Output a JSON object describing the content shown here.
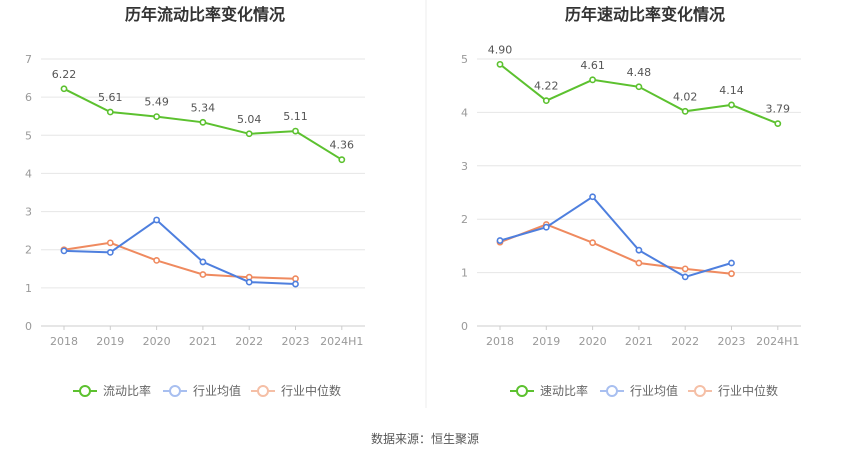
{
  "colors": {
    "current": "#5cc12f",
    "avg": "#4e7fde",
    "median": "#ef8a5f"
  },
  "legend": {
    "current_ratio": "流动比率",
    "quick_ratio": "速动比率",
    "industry_avg": "行业均值",
    "industry_median": "行业中位数"
  },
  "source": "数据来源：恒生聚源",
  "chart_data": [
    {
      "type": "line",
      "title": "历年流动比率变化情况",
      "categories": [
        "2018",
        "2019",
        "2020",
        "2021",
        "2022",
        "2023",
        "2024H1"
      ],
      "ylim": [
        0,
        7
      ],
      "yticks": [
        0,
        1,
        2,
        3,
        4,
        5,
        6,
        7
      ],
      "series": [
        {
          "name": "流动比率",
          "color_key": "current",
          "values": [
            6.22,
            5.61,
            5.49,
            5.34,
            5.04,
            5.11,
            4.36
          ],
          "labels": [
            "6.22",
            "5.61",
            "5.49",
            "5.34",
            "5.04",
            "5.11",
            "4.36"
          ]
        },
        {
          "name": "行业均值",
          "color_key": "avg",
          "values": [
            1.97,
            1.93,
            2.78,
            1.68,
            1.15,
            1.1,
            null
          ]
        },
        {
          "name": "行业中位数",
          "color_key": "median",
          "values": [
            2.0,
            2.18,
            1.72,
            1.35,
            1.28,
            1.24,
            null
          ]
        }
      ]
    },
    {
      "type": "line",
      "title": "历年速动比率变化情况",
      "categories": [
        "2018",
        "2019",
        "2020",
        "2021",
        "2022",
        "2023",
        "2024H1"
      ],
      "ylim": [
        0,
        5
      ],
      "yticks": [
        0,
        1,
        2,
        3,
        4,
        5
      ],
      "series": [
        {
          "name": "速动比率",
          "color_key": "current",
          "values": [
            4.9,
            4.22,
            4.61,
            4.48,
            4.02,
            4.14,
            3.79
          ],
          "labels": [
            "4.90",
            "4.22",
            "4.61",
            "4.48",
            "4.02",
            "4.14",
            "3.79"
          ]
        },
        {
          "name": "行业均值",
          "color_key": "avg",
          "values": [
            1.6,
            1.85,
            2.42,
            1.42,
            0.92,
            1.18,
            null
          ]
        },
        {
          "name": "行业中位数",
          "color_key": "median",
          "values": [
            1.57,
            1.9,
            1.56,
            1.18,
            1.07,
            0.98,
            null
          ]
        }
      ]
    }
  ]
}
